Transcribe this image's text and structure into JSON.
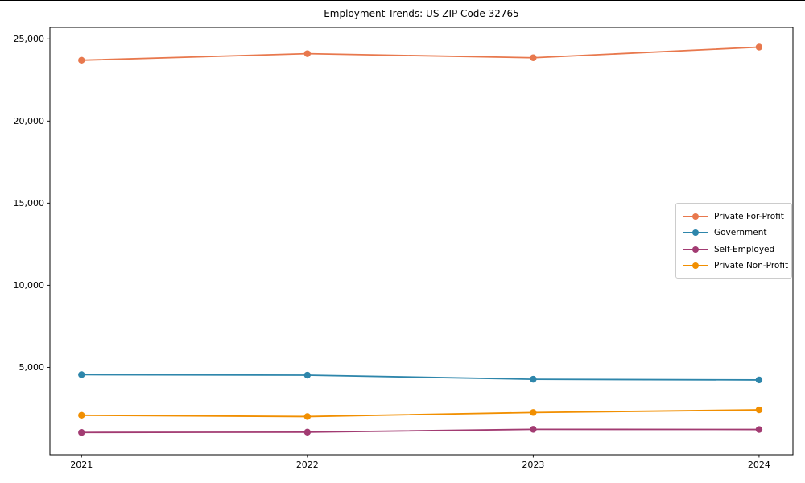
{
  "chart_data": {
    "type": "line",
    "title": "Employment Trends: US ZIP Code 32765",
    "x": [
      2021,
      2022,
      2023,
      2024
    ],
    "x_tick_labels": [
      "2021",
      "2022",
      "2023",
      "2024"
    ],
    "series": [
      {
        "name": "Private For-Profit",
        "color": "#E8784D",
        "values": [
          23700,
          24100,
          23850,
          24500
        ]
      },
      {
        "name": "Government",
        "color": "#2E86AB",
        "values": [
          4560,
          4530,
          4280,
          4240
        ]
      },
      {
        "name": "Self-Employed",
        "color": "#A23B72",
        "values": [
          1040,
          1060,
          1230,
          1220
        ]
      },
      {
        "name": "Private Non-Profit",
        "color": "#F18F01",
        "values": [
          2090,
          2010,
          2260,
          2420
        ]
      }
    ],
    "y_ticks": [
      5000,
      10000,
      15000,
      20000,
      25000
    ],
    "y_tick_labels": [
      "5,000",
      "10,000",
      "15,000",
      "20,000",
      "25,000"
    ],
    "ylim": [
      -320,
      25700
    ],
    "xlim": [
      2020.86,
      2024.15
    ],
    "grid": false,
    "legend_position": "center-right",
    "marker": "circle",
    "axis_color": "#000000",
    "legend_border_color": "#cccccc"
  }
}
